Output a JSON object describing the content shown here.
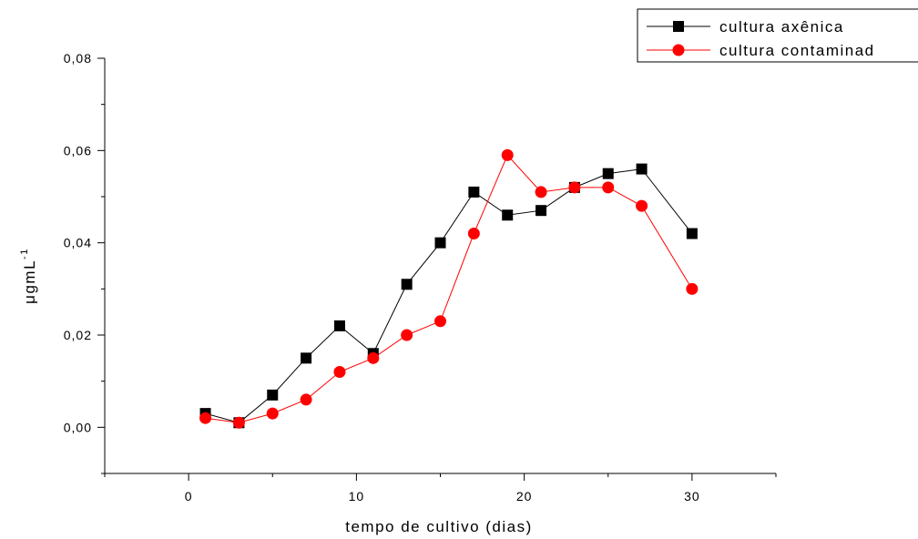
{
  "chart_data": {
    "type": "line",
    "title": "",
    "xlabel": "tempo de cultivo (dias)",
    "ylabel": "μgmL",
    "ylabel_superscript": "-1",
    "xlim": [
      -5,
      35
    ],
    "ylim": [
      -0.01,
      0.08
    ],
    "x_ticks": [
      0,
      10,
      20,
      30
    ],
    "x_tick_labels": [
      "0",
      "10",
      "20",
      "30"
    ],
    "y_ticks": [
      0.0,
      0.02,
      0.04,
      0.06,
      0.08
    ],
    "y_tick_labels": [
      "0,00",
      "0,02",
      "0,04",
      "0,06",
      "0,08"
    ],
    "grid": false,
    "legend_position": "top-right",
    "series": [
      {
        "name": "cultura axênica",
        "color": "#000000",
        "marker": "square",
        "x": [
          1,
          3,
          5,
          7,
          9,
          11,
          13,
          15,
          17,
          19,
          21,
          23,
          25,
          27,
          30
        ],
        "y": [
          0.003,
          0.001,
          0.007,
          0.015,
          0.022,
          0.016,
          0.031,
          0.04,
          0.051,
          0.046,
          0.047,
          0.052,
          0.055,
          0.056,
          0.042
        ]
      },
      {
        "name": "cultura contaminad",
        "color": "#ff0000",
        "marker": "circle",
        "x": [
          1,
          3,
          5,
          7,
          9,
          11,
          13,
          15,
          17,
          19,
          21,
          23,
          25,
          27,
          30
        ],
        "y": [
          0.002,
          0.001,
          0.003,
          0.006,
          0.012,
          0.015,
          0.02,
          0.023,
          0.042,
          0.059,
          0.051,
          0.052,
          0.052,
          0.048,
          0.03
        ]
      }
    ]
  }
}
